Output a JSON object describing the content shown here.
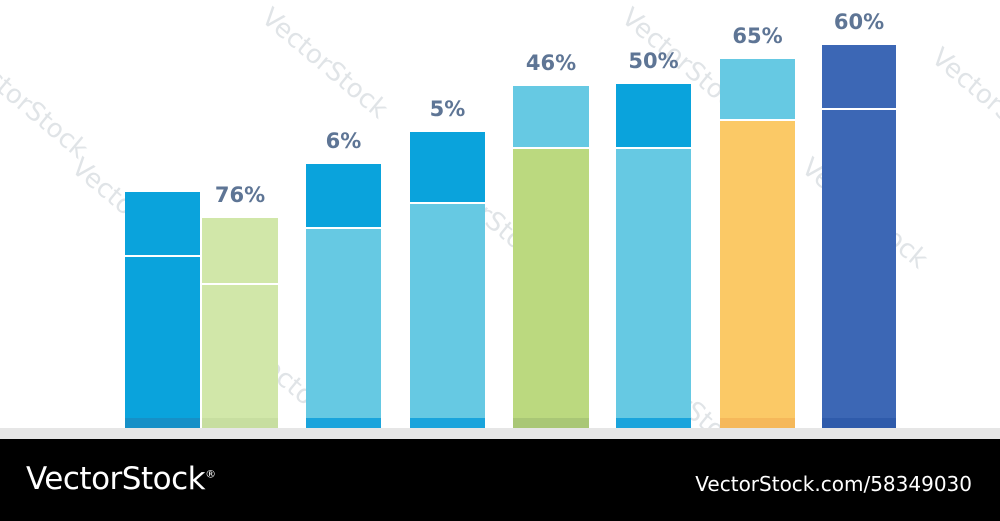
{
  "chart_data": {
    "type": "bar",
    "categories": [
      "",
      "",
      "",
      "",
      "",
      "",
      "",
      ""
    ],
    "bar_heights": [
      236,
      210,
      264,
      296,
      342,
      344,
      369,
      383
    ],
    "divider_heights": [
      172,
      144,
      200,
      225,
      280,
      280,
      308,
      319
    ],
    "ylim": [
      0,
      400
    ],
    "labels": [
      "",
      "76%",
      "6%",
      "5%",
      "46%",
      "50%",
      "65%",
      "60%"
    ],
    "colors": {
      "top": [
        "#0aa3dc",
        "#d1e7a9",
        "#0aa3dc",
        "#0aa3dc",
        "#66c9e3",
        "#0aa3dc",
        "#66c9e3",
        "#3c67b5"
      ],
      "bottom": [
        "#0aa3dc",
        "#d1e7a9",
        "#66c9e3",
        "#66c9e3",
        "#bbd97f",
        "#66c9e3",
        "#fbc966",
        "#3c67b5"
      ],
      "foot": [
        "#1690c7",
        "#c7dea0",
        "#1aa4dc",
        "#1aa4dc",
        "#a9c776",
        "#1aa4dc",
        "#f5b85a",
        "#2f5bab"
      ]
    },
    "label_color": "#5e7595",
    "grid": false,
    "legend": "none"
  },
  "watermark": "VectorStock",
  "footer": {
    "brand": "VectorStock",
    "registered_mark": "®",
    "credit": "VectorStock.com/58349030"
  }
}
